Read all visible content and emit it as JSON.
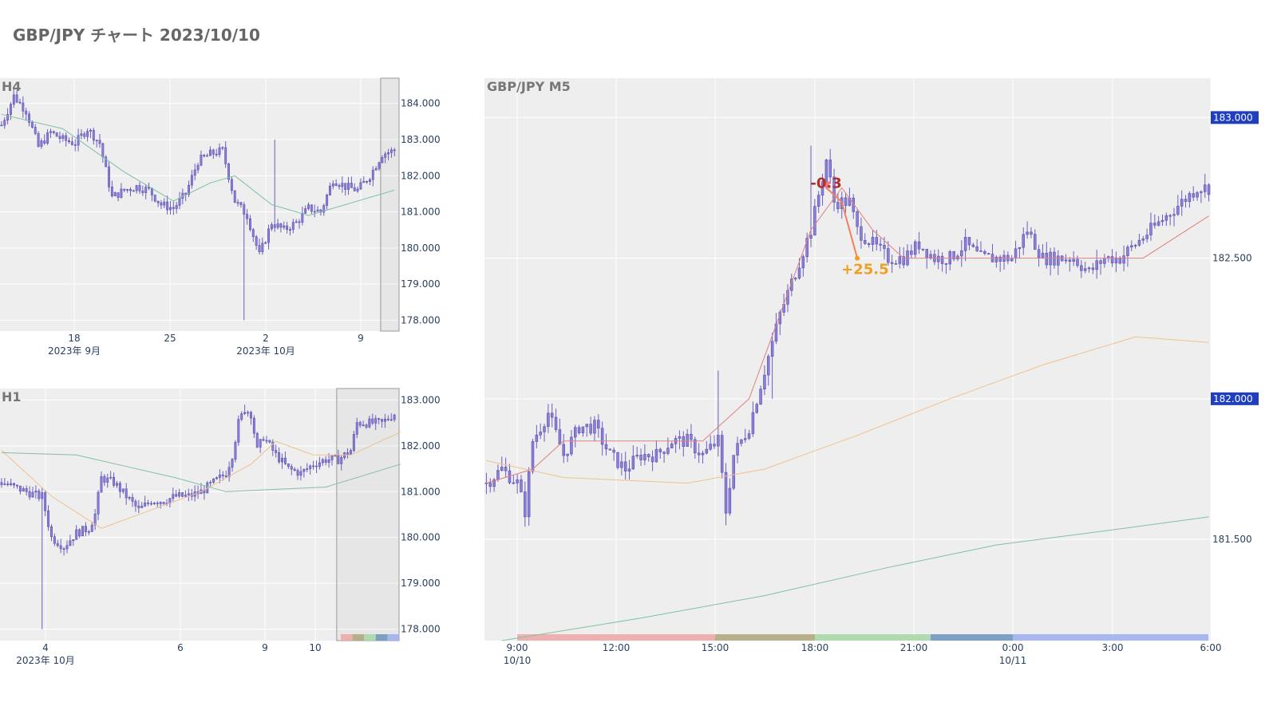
{
  "title": "GBP/JPY チャート 2023/10/10",
  "colors": {
    "candle": "#8a80d8",
    "ma_red": "#e08080",
    "ma_orange": "#f0c090",
    "ma_green": "#80c0a0",
    "price_box": "#1f3fbf",
    "annotation_loss": "#b03030",
    "annotation_profit": "#f0a020",
    "session_colors": [
      "#f0a8a8",
      "#b0a880",
      "#a8d8a8",
      "#7098c0",
      "#a0b0f0"
    ]
  },
  "chart_data": [
    {
      "type": "candlestick",
      "panel": "H4",
      "label": "H4",
      "x_ticks": [
        "18",
        "25",
        "2",
        "9"
      ],
      "x_sublabels": [
        "2023年 9月",
        "2023年 10月"
      ],
      "y_ticks": [
        "178.000",
        "179.000",
        "180.000",
        "181.000",
        "182.000",
        "183.000",
        "184.000"
      ],
      "ylim": [
        177.7,
        184.7
      ],
      "path": [
        [
          0,
          183.4
        ],
        [
          4,
          184.2
        ],
        [
          8,
          183.8
        ],
        [
          12,
          182.8
        ],
        [
          16,
          183.2
        ],
        [
          20,
          183.0
        ],
        [
          24,
          182.9
        ],
        [
          28,
          183.3
        ],
        [
          32,
          182.9
        ],
        [
          36,
          181.4
        ],
        [
          40,
          181.6
        ],
        [
          44,
          181.7
        ],
        [
          48,
          181.6
        ],
        [
          52,
          181.2
        ],
        [
          56,
          181.1
        ],
        [
          60,
          181.5
        ],
        [
          64,
          182.4
        ],
        [
          68,
          182.6
        ],
        [
          72,
          182.7
        ],
        [
          76,
          181.3
        ],
        [
          80,
          180.9
        ],
        [
          84,
          179.8
        ],
        [
          88,
          180.7
        ],
        [
          92,
          180.5
        ],
        [
          96,
          180.7
        ],
        [
          100,
          181.1
        ],
        [
          104,
          181.0
        ],
        [
          108,
          181.9
        ],
        [
          112,
          181.7
        ],
        [
          116,
          181.6
        ],
        [
          120,
          182.0
        ],
        [
          124,
          182.6
        ],
        [
          128,
          182.7
        ]
      ],
      "extremes": [
        [
          79,
          178.0
        ],
        [
          89,
          183.0
        ],
        [
          4,
          184.4
        ]
      ],
      "ma": [
        {
          "color": "ma_green",
          "points": [
            [
              0,
              183.7
            ],
            [
              20,
              183.3
            ],
            [
              40,
              182.1
            ],
            [
              56,
              181.3
            ],
            [
              68,
              181.8
            ],
            [
              76,
              182.0
            ],
            [
              88,
              181.2
            ],
            [
              100,
              180.9
            ],
            [
              112,
              181.2
            ],
            [
              128,
              181.6
            ]
          ]
        }
      ],
      "highlight_range": [
        124,
        130
      ]
    },
    {
      "type": "candlestick",
      "panel": "H1",
      "label": "H1",
      "x_ticks": [
        "4",
        "6",
        "9",
        "10"
      ],
      "x_sublabels": [
        "2023年 10月"
      ],
      "y_ticks": [
        "178.000",
        "179.000",
        "180.000",
        "181.000",
        "182.000",
        "183.000"
      ],
      "ylim": [
        177.75,
        183.25
      ],
      "path": [
        [
          0,
          181.2
        ],
        [
          8,
          181.0
        ],
        [
          12,
          180.9
        ],
        [
          13,
          180.9
        ],
        [
          16,
          180.0
        ],
        [
          20,
          179.8
        ],
        [
          24,
          180.1
        ],
        [
          28,
          180.2
        ],
        [
          30,
          180.5
        ],
        [
          32,
          181.3
        ],
        [
          36,
          181.2
        ],
        [
          40,
          180.9
        ],
        [
          44,
          180.6
        ],
        [
          48,
          180.8
        ],
        [
          52,
          180.8
        ],
        [
          56,
          180.9
        ],
        [
          60,
          180.9
        ],
        [
          64,
          181.0
        ],
        [
          68,
          181.2
        ],
        [
          72,
          181.4
        ],
        [
          74,
          181.8
        ],
        [
          76,
          182.5
        ],
        [
          78,
          182.8
        ],
        [
          80,
          182.7
        ],
        [
          82,
          181.9
        ],
        [
          84,
          182.2
        ],
        [
          88,
          181.8
        ],
        [
          92,
          181.5
        ],
        [
          96,
          181.4
        ],
        [
          100,
          181.6
        ],
        [
          104,
          181.7
        ],
        [
          108,
          181.7
        ],
        [
          112,
          181.9
        ],
        [
          114,
          182.5
        ],
        [
          118,
          182.5
        ],
        [
          122,
          182.5
        ],
        [
          126,
          182.7
        ]
      ],
      "extremes": [
        [
          13,
          178.0
        ],
        [
          78,
          182.9
        ]
      ],
      "ma": [
        {
          "color": "ma_orange",
          "points": [
            [
              0,
              181.9
            ],
            [
              16,
              180.9
            ],
            [
              32,
              180.2
            ],
            [
              48,
              180.6
            ],
            [
              64,
              181.0
            ],
            [
              80,
              181.6
            ],
            [
              88,
              182.1
            ],
            [
              100,
              181.8
            ],
            [
              112,
              181.8
            ],
            [
              128,
              182.3
            ]
          ]
        },
        {
          "color": "ma_green",
          "points": [
            [
              0,
              181.85
            ],
            [
              24,
              181.8
            ],
            [
              40,
              181.55
            ],
            [
              56,
              181.3
            ],
            [
              72,
              181.0
            ],
            [
              88,
              181.05
            ],
            [
              104,
              181.1
            ],
            [
              116,
              181.35
            ],
            [
              128,
              181.6
            ]
          ]
        }
      ],
      "highlight_range": [
        108,
        128
      ],
      "session_bar": true
    },
    {
      "type": "candlestick",
      "panel": "M5",
      "label": "GBP/JPY M5",
      "x_ticks": [
        "9:00",
        "12:00",
        "15:00",
        "18:00",
        "21:00",
        "0:00",
        "3:00",
        "6:00"
      ],
      "x_sublabels": [
        "10/10",
        "10/11"
      ],
      "y_ticks": [
        "181.500",
        "182.000",
        "182.500",
        "183.000"
      ],
      "price_boxes": [
        "183.000",
        "182.000"
      ],
      "ylim": [
        181.14,
        183.14
      ],
      "path": [
        [
          0,
          181.7
        ],
        [
          4,
          181.75
        ],
        [
          8,
          181.7
        ],
        [
          10,
          181.6
        ],
        [
          12,
          181.85
        ],
        [
          16,
          181.95
        ],
        [
          20,
          181.8
        ],
        [
          24,
          181.9
        ],
        [
          28,
          181.9
        ],
        [
          32,
          181.8
        ],
        [
          36,
          181.75
        ],
        [
          40,
          181.8
        ],
        [
          44,
          181.8
        ],
        [
          48,
          181.85
        ],
        [
          52,
          181.85
        ],
        [
          56,
          181.8
        ],
        [
          60,
          181.85
        ],
        [
          62,
          181.6
        ],
        [
          64,
          181.8
        ],
        [
          68,
          181.9
        ],
        [
          72,
          182.1
        ],
        [
          76,
          182.3
        ],
        [
          80,
          182.45
        ],
        [
          84,
          182.6
        ],
        [
          88,
          182.85
        ],
        [
          90,
          182.7
        ],
        [
          94,
          182.7
        ],
        [
          96,
          182.6
        ],
        [
          100,
          182.55
        ],
        [
          104,
          182.5
        ],
        [
          108,
          182.5
        ],
        [
          112,
          182.55
        ],
        [
          116,
          182.5
        ],
        [
          120,
          182.5
        ],
        [
          124,
          182.55
        ],
        [
          128,
          182.5
        ],
        [
          132,
          182.5
        ],
        [
          136,
          182.5
        ],
        [
          140,
          182.6
        ],
        [
          144,
          182.5
        ],
        [
          148,
          182.5
        ],
        [
          152,
          182.5
        ],
        [
          156,
          182.45
        ],
        [
          160,
          182.5
        ],
        [
          164,
          182.5
        ],
        [
          168,
          182.55
        ],
        [
          172,
          182.6
        ],
        [
          176,
          182.65
        ],
        [
          180,
          182.7
        ],
        [
          184,
          182.75
        ],
        [
          187,
          182.75
        ]
      ],
      "extremes": [
        [
          62,
          181.55
        ],
        [
          11,
          181.55
        ],
        [
          60,
          182.1
        ],
        [
          74,
          182.0
        ],
        [
          84,
          182.9
        ],
        [
          88,
          182.8
        ]
      ],
      "ma": [
        {
          "color": "ma_red",
          "points": [
            [
              0,
              181.7
            ],
            [
              12,
              181.75
            ],
            [
              20,
              181.85
            ],
            [
              36,
              181.85
            ],
            [
              56,
              181.85
            ],
            [
              68,
              182.0
            ],
            [
              76,
              182.3
            ],
            [
              84,
              182.6
            ],
            [
              92,
              182.75
            ],
            [
              100,
              182.6
            ],
            [
              108,
              182.5
            ],
            [
              124,
              182.5
            ],
            [
              140,
              182.5
            ],
            [
              156,
              182.5
            ],
            [
              170,
              182.5
            ],
            [
              187,
              182.65
            ]
          ]
        },
        {
          "color": "ma_orange",
          "points": [
            [
              0,
              181.78
            ],
            [
              20,
              181.72
            ],
            [
              36,
              181.71
            ],
            [
              52,
              181.7
            ],
            [
              72,
              181.75
            ],
            [
              96,
              181.87
            ],
            [
              120,
              182.0
            ],
            [
              144,
              182.12
            ],
            [
              168,
              182.22
            ],
            [
              187,
              182.2
            ]
          ]
        },
        {
          "color": "ma_green",
          "points": [
            [
              4,
              181.14
            ],
            [
              40,
              181.22
            ],
            [
              72,
              181.3
            ],
            [
              104,
              181.4
            ],
            [
              132,
              181.48
            ],
            [
              160,
              181.53
            ],
            [
              187,
              181.58
            ]
          ]
        }
      ],
      "annotations": [
        {
          "text": "-0.3",
          "x": 88,
          "y": 182.75,
          "color": "annotation_loss"
        },
        {
          "text": "+25.5",
          "x": 96,
          "y": 182.5,
          "color": "annotation_profit"
        }
      ],
      "trade_path": [
        [
          88,
          182.75
        ],
        [
          92,
          182.7
        ],
        [
          96,
          182.5
        ]
      ],
      "session_bar": true
    }
  ]
}
